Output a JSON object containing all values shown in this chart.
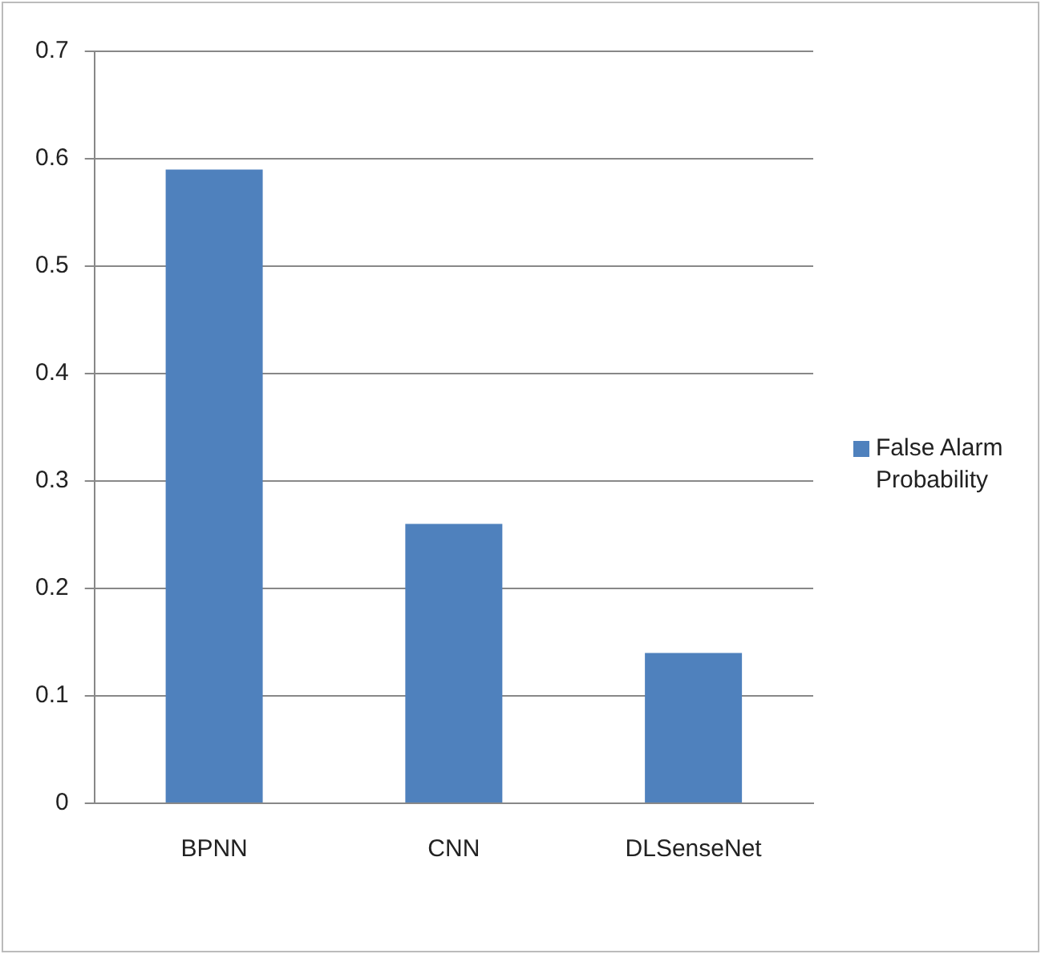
{
  "chart_data": {
    "type": "bar",
    "categories": [
      "BPNN",
      "CNN",
      "DLSenseNet"
    ],
    "series": [
      {
        "name": "False Alarm Probability",
        "color": "#4f81bd",
        "values": [
          0.59,
          0.26,
          0.14
        ]
      }
    ],
    "ylim": [
      0,
      0.7
    ],
    "yticks": [
      0,
      0.1,
      0.2,
      0.3,
      0.4,
      0.5,
      0.6,
      0.7
    ],
    "grid": "y",
    "legend": "right"
  }
}
